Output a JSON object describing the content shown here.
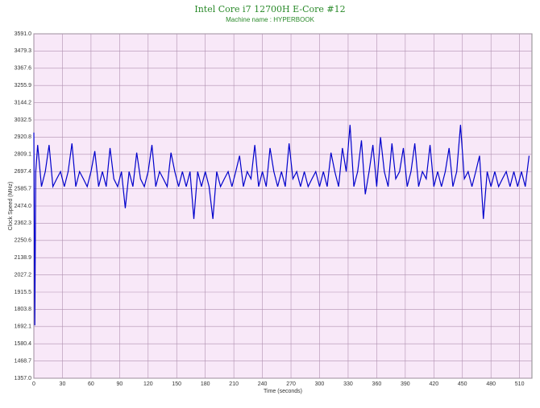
{
  "chart_data": {
    "type": "line",
    "title": "Intel Core i7 12700H E-Core #12",
    "subtitle": "Machine name : HYPERBOOK",
    "x_label": "Time (seconds)",
    "y_label": "Clock Speed (MHz)",
    "x": [
      0,
      1,
      2,
      4,
      8,
      12,
      16,
      20,
      24,
      28,
      32,
      36,
      40,
      44,
      48,
      52,
      56,
      60,
      64,
      68,
      72,
      76,
      80,
      84,
      88,
      92,
      96,
      100,
      104,
      108,
      112,
      116,
      120,
      124,
      128,
      132,
      136,
      140,
      144,
      148,
      152,
      156,
      160,
      164,
      168,
      172,
      176,
      180,
      184,
      188,
      192,
      196,
      200,
      204,
      208,
      212,
      216,
      220,
      224,
      228,
      232,
      236,
      240,
      244,
      248,
      252,
      256,
      260,
      264,
      268,
      272,
      276,
      280,
      284,
      288,
      292,
      296,
      300,
      304,
      308,
      312,
      316,
      320,
      324,
      328,
      332,
      336,
      340,
      344,
      348,
      352,
      356,
      360,
      364,
      368,
      372,
      376,
      380,
      384,
      388,
      392,
      396,
      400,
      404,
      408,
      412,
      416,
      420,
      424,
      428,
      432,
      436,
      440,
      444,
      448,
      452,
      456,
      460,
      464,
      468,
      472,
      476,
      480,
      484,
      488,
      492,
      496,
      500,
      504,
      508,
      512,
      516,
      520
    ],
    "series": [
      {
        "name": "Clock Speed",
        "color": "#0000cc",
        "values": [
          2950,
          1700,
          2697,
          2870,
          2600,
          2697,
          2870,
          2600,
          2650,
          2697,
          2600,
          2697,
          2880,
          2600,
          2697,
          2650,
          2600,
          2697,
          2830,
          2600,
          2697,
          2600,
          2850,
          2650,
          2600,
          2697,
          2460,
          2697,
          2600,
          2820,
          2650,
          2600,
          2697,
          2870,
          2600,
          2697,
          2650,
          2600,
          2820,
          2697,
          2600,
          2697,
          2600,
          2697,
          2390,
          2697,
          2600,
          2697,
          2600,
          2390,
          2697,
          2600,
          2650,
          2697,
          2600,
          2697,
          2800,
          2600,
          2697,
          2650,
          2870,
          2600,
          2697,
          2600,
          2850,
          2697,
          2600,
          2697,
          2600,
          2880,
          2650,
          2697,
          2600,
          2697,
          2600,
          2650,
          2697,
          2600,
          2697,
          2600,
          2820,
          2697,
          2600,
          2850,
          2697,
          3000,
          2600,
          2697,
          2900,
          2550,
          2697,
          2870,
          2600,
          2920,
          2697,
          2600,
          2880,
          2650,
          2697,
          2850,
          2600,
          2697,
          2880,
          2600,
          2697,
          2650,
          2870,
          2600,
          2697,
          2600,
          2697,
          2850,
          2600,
          2697,
          3000,
          2650,
          2697,
          2600,
          2697,
          2800,
          2390,
          2697,
          2600,
          2697,
          2600,
          2650,
          2697,
          2600,
          2697,
          2600,
          2697,
          2600,
          2800
        ]
      }
    ],
    "xlim": [
      0,
      523
    ],
    "ylim": [
      1357,
      3591
    ],
    "xticks": [
      0,
      30,
      60,
      90,
      120,
      150,
      180,
      210,
      240,
      270,
      300,
      330,
      360,
      390,
      420,
      450,
      480,
      510
    ],
    "yticks": [
      {
        "value": 1357,
        "label": "1357.0"
      },
      1468.7,
      1580.4,
      1692.1,
      1803.8,
      1915.5,
      2027.2,
      2138.9,
      2250.6,
      2362.3,
      {
        "value": 2474,
        "label": "2474.0"
      },
      2585.7,
      2697.4,
      2809.1,
      2920.8,
      3032.5,
      3144.2,
      3255.9,
      3367.6,
      3479.3,
      {
        "value": 3591,
        "label": "3591.0"
      }
    ],
    "grid": true
  }
}
